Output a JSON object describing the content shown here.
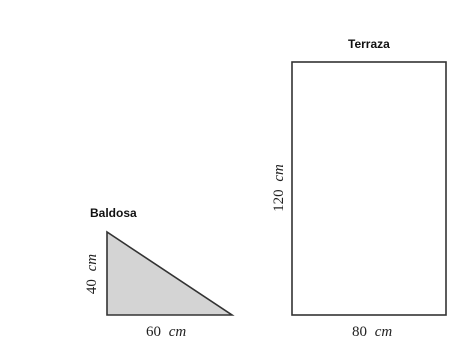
{
  "tile": {
    "title": "Baldosa",
    "width_label": {
      "value": "60",
      "unit": "cm"
    },
    "height_label": {
      "value": "40",
      "unit": "cm"
    },
    "fill_color": "#d4d4d4"
  },
  "terrace": {
    "title": "Terraza",
    "width_label": {
      "value": "80",
      "unit": "cm"
    },
    "height_label": {
      "value": "120",
      "unit": "cm"
    }
  },
  "colors": {
    "stroke": "#333333",
    "background": "#ffffff"
  }
}
